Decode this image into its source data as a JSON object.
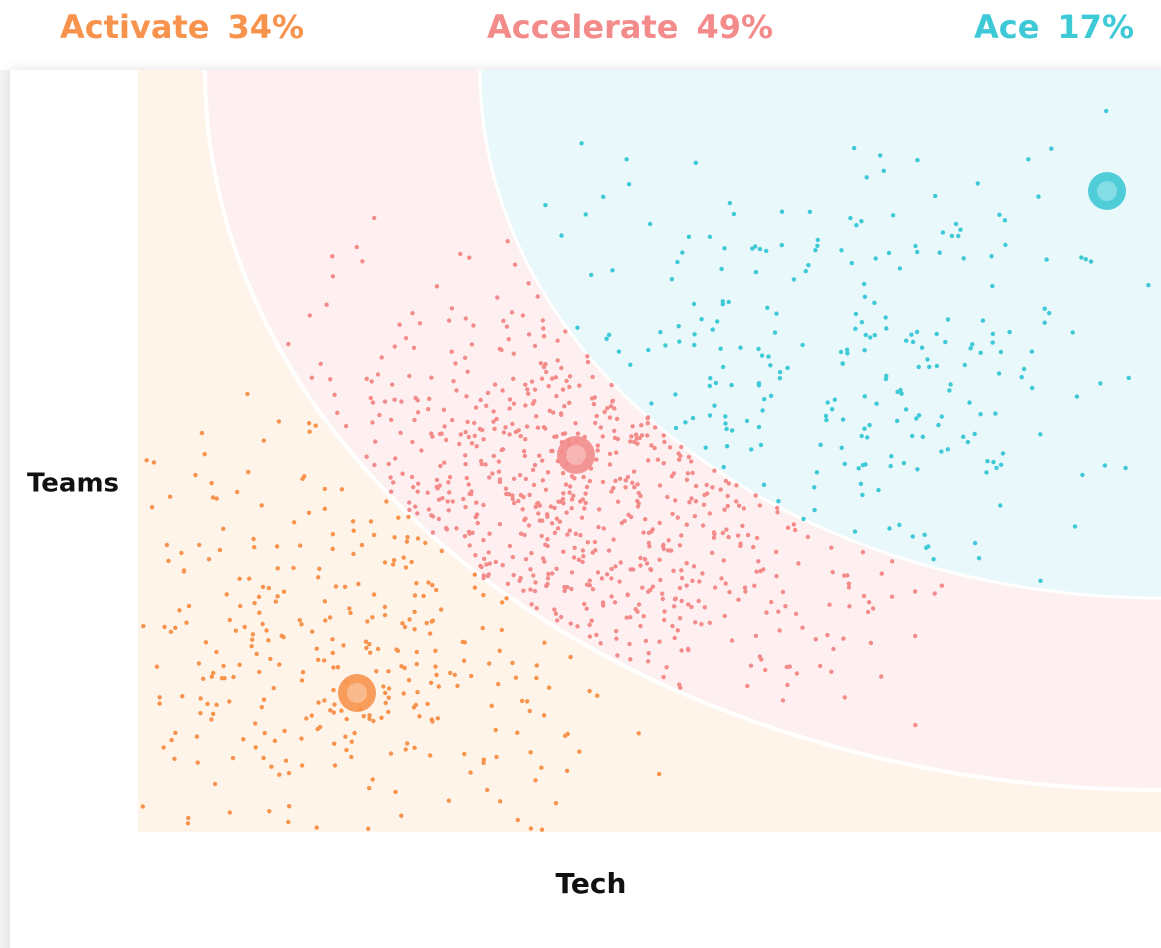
{
  "chart_data": {
    "type": "segments",
    "categories": [
      "Activate",
      "Accelerate",
      "Ace"
    ],
    "values": [
      34,
      49,
      17
    ],
    "value_labels": [
      "34%",
      "49%",
      "17%"
    ],
    "colors": [
      "#f7934c",
      "#f38b8b",
      "#3ec9d6"
    ],
    "xlabel": "Tech",
    "ylabel": "Teams"
  }
}
